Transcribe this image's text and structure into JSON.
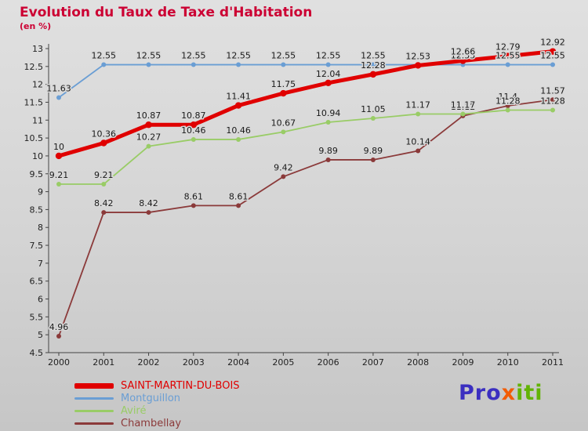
{
  "title": "Evolution du Taux de Taxe d'Habitation",
  "subtitle": "(en %)",
  "colors": {
    "title": "#cc0033",
    "axis": "#444444",
    "tick_label": "#222222",
    "value_label": "#1a1a1a",
    "background": "#d4d4d4"
  },
  "logo": {
    "parts": [
      {
        "text": "Pro",
        "color": "#3b2fc0"
      },
      {
        "text": "x",
        "color": "#f25c05"
      },
      {
        "text": "iti",
        "color": "#62b305"
      }
    ]
  },
  "chart_data": {
    "type": "line",
    "title": "Evolution du Taux de Taxe d'Habitation",
    "ylabel": "en %",
    "x": [
      2000,
      2001,
      2002,
      2003,
      2004,
      2005,
      2006,
      2007,
      2008,
      2009,
      2010,
      2011
    ],
    "ylim": [
      4.5,
      13
    ],
    "ytick_step": 0.5,
    "grid": false,
    "legend_position": "bottom-left",
    "series": [
      {
        "name": "SAINT-MARTIN-DU-BOIS",
        "color": "#e00000",
        "line_width": 5,
        "values": [
          10,
          10.36,
          10.87,
          10.87,
          11.41,
          11.75,
          12.04,
          12.28,
          12.53,
          12.66,
          12.79,
          12.92
        ]
      },
      {
        "name": "Montguillon",
        "color": "#6a9ed4",
        "line_width": 1.8,
        "values": [
          11.63,
          12.55,
          12.55,
          12.55,
          12.55,
          12.55,
          12.55,
          12.55,
          12.55,
          12.55,
          12.55,
          12.55
        ]
      },
      {
        "name": "Aviré",
        "color": "#99cc66",
        "line_width": 1.8,
        "values": [
          9.21,
          9.21,
          10.27,
          10.46,
          10.46,
          10.67,
          10.94,
          11.05,
          11.17,
          11.17,
          11.28,
          11.28
        ]
      },
      {
        "name": "Chambellay",
        "color": "#8b3a3a",
        "line_width": 1.8,
        "values": [
          4.96,
          8.42,
          8.42,
          8.61,
          8.61,
          9.42,
          9.89,
          9.89,
          10.14,
          11.12,
          11.4,
          11.57
        ]
      }
    ]
  }
}
